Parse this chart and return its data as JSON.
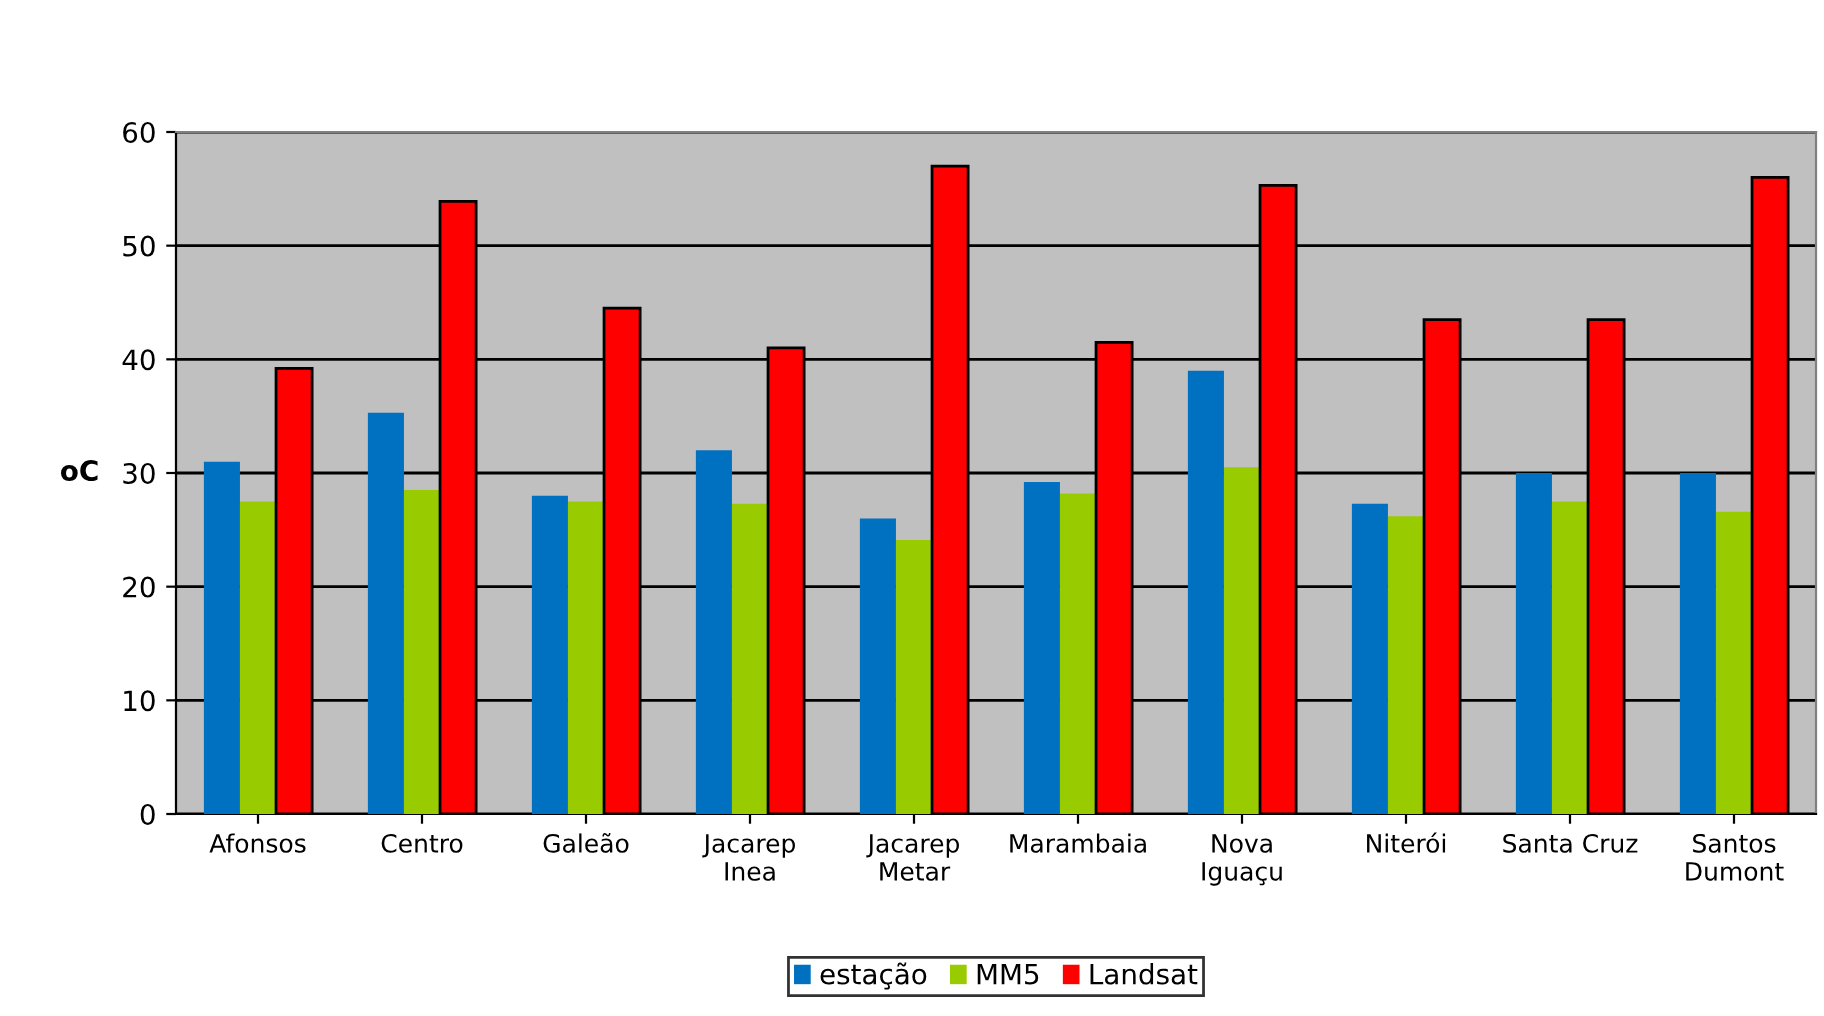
{
  "chart_data": {
    "type": "bar",
    "ylabel": "oC",
    "categories": [
      "Afonsos",
      "Centro",
      "Galeão",
      "Jacarep\nInea",
      "Jacarep\nMetar",
      "Marambaia",
      "Nova\nIguaçu",
      "Niterói",
      "Santa Cruz",
      "Santos\nDumont"
    ],
    "series": [
      {
        "name": "estação",
        "color": "#0070c0",
        "values": [
          31,
          35.3,
          28,
          32,
          26,
          29.2,
          39,
          27.3,
          30,
          30
        ]
      },
      {
        "name": "MM5",
        "color": "#99cc00",
        "values": [
          27.5,
          28.5,
          27.5,
          27.3,
          24.1,
          28.2,
          30.5,
          26.2,
          27.5,
          26.6
        ]
      },
      {
        "name": "Landsat",
        "color": "#ff0000",
        "values": [
          39.2,
          53.9,
          44.5,
          41,
          57,
          41.5,
          55.3,
          43.5,
          43.5,
          56
        ]
      }
    ],
    "ylim": [
      0,
      60
    ],
    "yticks": [
      0,
      10,
      20,
      30,
      40,
      50,
      60
    ],
    "grid": "y",
    "legend": "bottom"
  }
}
